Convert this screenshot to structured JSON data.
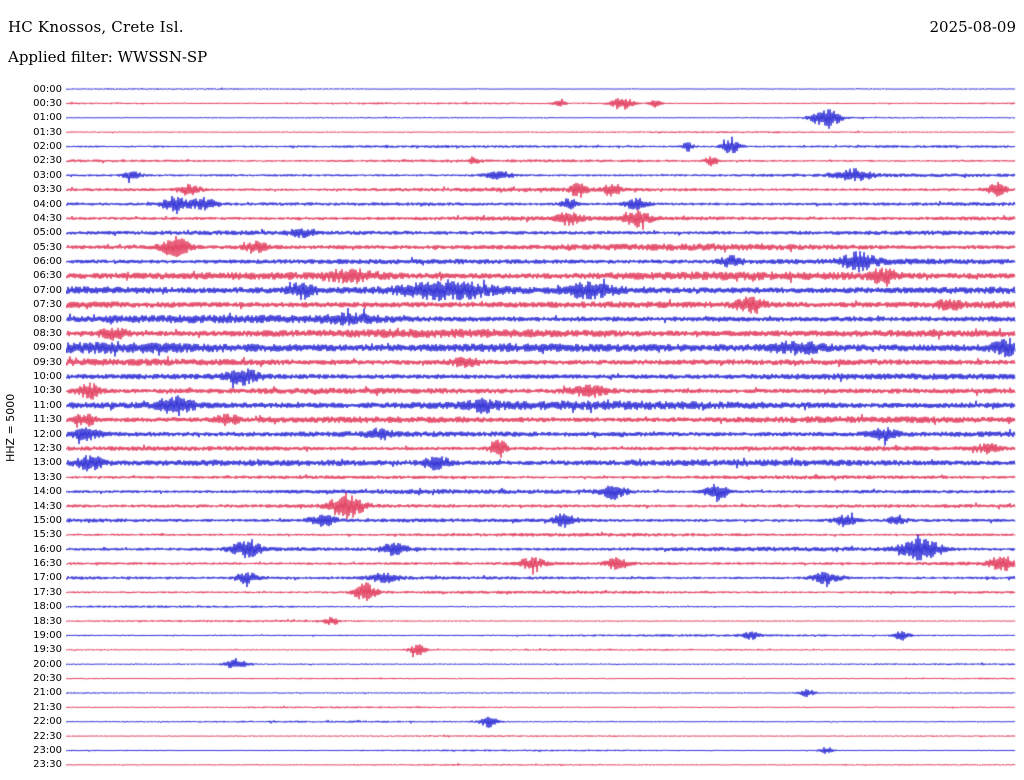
{
  "header": {
    "station": "HC Knossos, Crete Isl.",
    "date": "2025-08-09",
    "filter": "Applied filter: WWSSN-SP"
  },
  "axis": {
    "left_label": "HHZ = 5000"
  },
  "chart_data": {
    "type": "line",
    "subtype": "helicorder-seismogram",
    "title": "HC Knossos, Crete Isl.",
    "date": "2025-08-09",
    "filter": "WWSSN-SP",
    "channel_scale_label": "HHZ = 5000",
    "row_duration_minutes": 30,
    "rows_count": 48,
    "legend_position": "none",
    "grid": false,
    "colors": {
      "blue": "#0000cd",
      "red": "#dc143c"
    },
    "rows": [
      {
        "t": "00:00",
        "c": "blue",
        "a": 0.1,
        "b": []
      },
      {
        "t": "00:30",
        "c": "red",
        "a": 0.14,
        "b": [
          [
            0.52,
            0.004,
            0.5
          ],
          [
            0.585,
            0.008,
            0.7
          ],
          [
            0.62,
            0.004,
            0.4
          ]
        ]
      },
      {
        "t": "01:00",
        "c": "blue",
        "a": 0.1,
        "b": [
          [
            0.8,
            0.01,
            1.2
          ]
        ]
      },
      {
        "t": "01:30",
        "c": "red",
        "a": 0.12,
        "b": []
      },
      {
        "t": "02:00",
        "c": "blue",
        "a": 0.18,
        "b": [
          [
            0.655,
            0.004,
            0.5
          ],
          [
            0.7,
            0.006,
            0.9
          ]
        ]
      },
      {
        "t": "02:30",
        "c": "red",
        "a": 0.2,
        "b": [
          [
            0.43,
            0.004,
            0.4
          ],
          [
            0.68,
            0.005,
            0.5
          ]
        ]
      },
      {
        "t": "03:00",
        "c": "blue",
        "a": 0.22,
        "b": [
          [
            0.07,
            0.006,
            0.5
          ],
          [
            0.455,
            0.01,
            0.5
          ],
          [
            0.83,
            0.012,
            0.6
          ]
        ]
      },
      {
        "t": "03:30",
        "c": "red",
        "a": 0.25,
        "b": [
          [
            0.13,
            0.008,
            0.6
          ],
          [
            0.54,
            0.006,
            0.8
          ],
          [
            0.575,
            0.006,
            0.7
          ],
          [
            0.98,
            0.006,
            0.9
          ]
        ]
      },
      {
        "t": "04:00",
        "c": "blue",
        "a": 0.28,
        "b": [
          [
            0.115,
            0.01,
            0.8
          ],
          [
            0.145,
            0.008,
            0.7
          ],
          [
            0.53,
            0.006,
            0.6
          ],
          [
            0.6,
            0.008,
            0.6
          ]
        ]
      },
      {
        "t": "04:30",
        "c": "red",
        "a": 0.3,
        "b": [
          [
            0.53,
            0.008,
            0.7
          ],
          [
            0.6,
            0.01,
            0.8
          ]
        ]
      },
      {
        "t": "05:00",
        "c": "blue",
        "a": 0.34,
        "b": [
          [
            0.25,
            0.01,
            0.4
          ]
        ]
      },
      {
        "t": "05:30",
        "c": "red",
        "a": 0.4,
        "b": [
          [
            0.115,
            0.01,
            1.0
          ],
          [
            0.2,
            0.008,
            0.6
          ]
        ]
      },
      {
        "t": "06:00",
        "c": "blue",
        "a": 0.38,
        "b": [
          [
            0.7,
            0.008,
            0.5
          ],
          [
            0.835,
            0.012,
            0.9
          ]
        ]
      },
      {
        "t": "06:30",
        "c": "red",
        "a": 0.55,
        "b": [
          [
            0.3,
            0.02,
            0.5
          ],
          [
            0.86,
            0.01,
            0.6
          ]
        ]
      },
      {
        "t": "07:00",
        "c": "blue",
        "a": 0.6,
        "b": [
          [
            0.25,
            0.01,
            0.8
          ],
          [
            0.4,
            0.03,
            0.9
          ],
          [
            0.55,
            0.02,
            0.7
          ]
        ]
      },
      {
        "t": "07:30",
        "c": "red",
        "a": 0.55,
        "b": [
          [
            0.72,
            0.01,
            0.7
          ],
          [
            0.93,
            0.008,
            0.5
          ]
        ]
      },
      {
        "t": "08:00",
        "c": "blue",
        "a": 0.5,
        "b": [
          [
            0.3,
            0.02,
            0.4
          ]
        ]
      },
      {
        "t": "08:30",
        "c": "red",
        "a": 0.55,
        "b": [
          [
            0.05,
            0.01,
            0.5
          ]
        ]
      },
      {
        "t": "09:00",
        "c": "blue",
        "a": 0.7,
        "b": [
          [
            0.77,
            0.02,
            0.5
          ],
          [
            0.99,
            0.01,
            0.8
          ]
        ]
      },
      {
        "t": "09:30",
        "c": "red",
        "a": 0.5,
        "b": [
          [
            0.42,
            0.01,
            0.4
          ]
        ]
      },
      {
        "t": "10:00",
        "c": "blue",
        "a": 0.45,
        "b": [
          [
            0.185,
            0.012,
            0.8
          ]
        ]
      },
      {
        "t": "10:30",
        "c": "red",
        "a": 0.45,
        "b": [
          [
            0.025,
            0.008,
            0.8
          ],
          [
            0.55,
            0.015,
            0.5
          ]
        ]
      },
      {
        "t": "11:00",
        "c": "blue",
        "a": 0.55,
        "b": [
          [
            0.115,
            0.012,
            0.9
          ],
          [
            0.44,
            0.01,
            0.5
          ]
        ]
      },
      {
        "t": "11:30",
        "c": "red",
        "a": 0.45,
        "b": [
          [
            0.02,
            0.008,
            0.6
          ],
          [
            0.17,
            0.008,
            0.5
          ]
        ]
      },
      {
        "t": "12:00",
        "c": "blue",
        "a": 0.45,
        "b": [
          [
            0.02,
            0.01,
            0.5
          ],
          [
            0.33,
            0.008,
            0.5
          ],
          [
            0.86,
            0.01,
            0.6
          ]
        ]
      },
      {
        "t": "12:30",
        "c": "red",
        "a": 0.35,
        "b": [
          [
            0.455,
            0.006,
            1.0
          ],
          [
            0.97,
            0.008,
            0.5
          ]
        ]
      },
      {
        "t": "13:00",
        "c": "blue",
        "a": 0.45,
        "b": [
          [
            0.025,
            0.01,
            0.7
          ],
          [
            0.39,
            0.01,
            0.6
          ]
        ]
      },
      {
        "t": "13:30",
        "c": "red",
        "a": 0.25,
        "b": []
      },
      {
        "t": "14:00",
        "c": "blue",
        "a": 0.28,
        "b": [
          [
            0.575,
            0.01,
            0.8
          ],
          [
            0.685,
            0.008,
            1.0
          ]
        ]
      },
      {
        "t": "14:30",
        "c": "red",
        "a": 0.3,
        "b": [
          [
            0.295,
            0.012,
            1.3
          ]
        ]
      },
      {
        "t": "15:00",
        "c": "blue",
        "a": 0.3,
        "b": [
          [
            0.27,
            0.01,
            0.6
          ],
          [
            0.525,
            0.008,
            0.7
          ],
          [
            0.82,
            0.008,
            0.6
          ],
          [
            0.875,
            0.006,
            0.6
          ]
        ]
      },
      {
        "t": "15:30",
        "c": "red",
        "a": 0.22,
        "b": []
      },
      {
        "t": "16:00",
        "c": "blue",
        "a": 0.28,
        "b": [
          [
            0.19,
            0.012,
            0.8
          ],
          [
            0.345,
            0.01,
            0.6
          ],
          [
            0.9,
            0.015,
            1.1
          ]
        ]
      },
      {
        "t": "16:30",
        "c": "red",
        "a": 0.25,
        "b": [
          [
            0.49,
            0.01,
            0.6
          ],
          [
            0.58,
            0.008,
            0.6
          ],
          [
            0.985,
            0.008,
            0.8
          ]
        ]
      },
      {
        "t": "17:00",
        "c": "blue",
        "a": 0.25,
        "b": [
          [
            0.19,
            0.008,
            0.6
          ],
          [
            0.335,
            0.01,
            0.5
          ],
          [
            0.8,
            0.01,
            0.6
          ]
        ]
      },
      {
        "t": "17:30",
        "c": "red",
        "a": 0.2,
        "b": [
          [
            0.315,
            0.008,
            1.0
          ]
        ]
      },
      {
        "t": "18:00",
        "c": "blue",
        "a": 0.13,
        "b": []
      },
      {
        "t": "18:30",
        "c": "red",
        "a": 0.13,
        "b": [
          [
            0.28,
            0.006,
            0.4
          ]
        ]
      },
      {
        "t": "19:00",
        "c": "blue",
        "a": 0.14,
        "b": [
          [
            0.72,
            0.006,
            0.5
          ],
          [
            0.88,
            0.006,
            0.5
          ]
        ]
      },
      {
        "t": "19:30",
        "c": "red",
        "a": 0.13,
        "b": [
          [
            0.37,
            0.006,
            0.6
          ]
        ]
      },
      {
        "t": "20:00",
        "c": "blue",
        "a": 0.13,
        "b": [
          [
            0.18,
            0.008,
            0.6
          ]
        ]
      },
      {
        "t": "20:30",
        "c": "red",
        "a": 0.12,
        "b": []
      },
      {
        "t": "21:00",
        "c": "blue",
        "a": 0.12,
        "b": [
          [
            0.78,
            0.006,
            0.4
          ]
        ]
      },
      {
        "t": "21:30",
        "c": "red",
        "a": 0.12,
        "b": []
      },
      {
        "t": "22:00",
        "c": "blue",
        "a": 0.12,
        "b": [
          [
            0.445,
            0.006,
            0.6
          ]
        ]
      },
      {
        "t": "22:30",
        "c": "red",
        "a": 0.11,
        "b": []
      },
      {
        "t": "23:00",
        "c": "blue",
        "a": 0.11,
        "b": [
          [
            0.8,
            0.005,
            0.4
          ]
        ]
      },
      {
        "t": "23:30",
        "c": "red",
        "a": 0.11,
        "b": []
      }
    ]
  }
}
